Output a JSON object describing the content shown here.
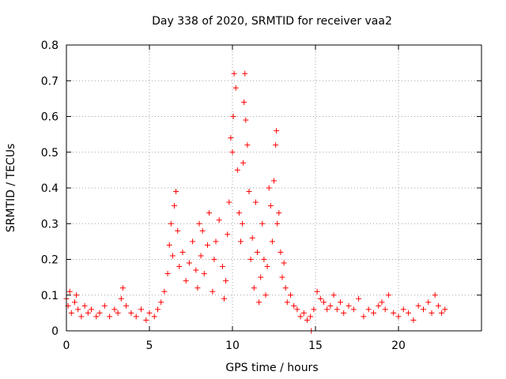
{
  "chart_data": {
    "type": "scatter",
    "title": "Day 338 of 2020, SRMTID for receiver vaa2",
    "xlabel": "GPS time / hours",
    "ylabel": "SRMTID / TECUs",
    "xlim": [
      0,
      25
    ],
    "ylim": [
      0,
      0.8
    ],
    "xticks": [
      0,
      5,
      10,
      15,
      20
    ],
    "xtick_labels": [
      "0",
      "5",
      "10",
      "15",
      "20"
    ],
    "yticks": [
      0,
      0.1,
      0.2,
      0.3,
      0.4,
      0.5,
      0.6,
      0.7,
      0.8
    ],
    "ytick_labels": [
      "0",
      "0.1",
      "0.2",
      "0.3",
      "0.4",
      "0.5",
      "0.6",
      "0.7",
      "0.8"
    ],
    "grid": true,
    "marker": "plus",
    "color": "#ff0000",
    "series": [
      {
        "name": "SRMTID",
        "x": [
          0.0,
          0.1,
          0.2,
          0.3,
          0.5,
          0.6,
          0.7,
          0.9,
          1.1,
          1.3,
          1.5,
          1.8,
          2.0,
          2.3,
          2.6,
          2.9,
          3.1,
          3.3,
          3.4,
          3.6,
          3.9,
          4.2,
          4.5,
          4.8,
          5.0,
          5.3,
          5.5,
          5.7,
          5.9,
          6.1,
          6.2,
          6.3,
          6.4,
          6.5,
          6.6,
          6.7,
          6.8,
          7.0,
          7.2,
          7.4,
          7.6,
          7.8,
          7.9,
          8.0,
          8.1,
          8.2,
          8.3,
          8.5,
          8.6,
          8.8,
          8.9,
          9.0,
          9.2,
          9.4,
          9.5,
          9.6,
          9.7,
          9.8,
          9.9,
          10.0,
          10.05,
          10.1,
          10.2,
          10.3,
          10.4,
          10.5,
          10.6,
          10.65,
          10.7,
          10.75,
          10.8,
          10.9,
          11.0,
          11.1,
          11.2,
          11.3,
          11.4,
          11.5,
          11.6,
          11.7,
          11.8,
          11.9,
          12.0,
          12.1,
          12.2,
          12.3,
          12.4,
          12.5,
          12.6,
          12.65,
          12.7,
          12.8,
          12.9,
          13.0,
          13.1,
          13.2,
          13.3,
          13.5,
          13.7,
          13.9,
          14.1,
          14.3,
          14.5,
          14.7,
          14.75,
          14.9,
          15.1,
          15.3,
          15.5,
          15.7,
          15.9,
          16.1,
          16.3,
          16.5,
          16.7,
          17.0,
          17.3,
          17.6,
          17.9,
          18.2,
          18.5,
          18.8,
          19.0,
          19.2,
          19.4,
          19.7,
          20.0,
          20.3,
          20.6,
          20.9,
          21.2,
          21.5,
          21.8,
          22.0,
          22.2,
          22.4,
          22.6,
          22.8
        ],
        "values": [
          0.09,
          0.07,
          0.11,
          0.05,
          0.08,
          0.1,
          0.06,
          0.04,
          0.07,
          0.05,
          0.06,
          0.04,
          0.05,
          0.07,
          0.04,
          0.06,
          0.05,
          0.09,
          0.12,
          0.07,
          0.05,
          0.04,
          0.06,
          0.03,
          0.05,
          0.04,
          0.06,
          0.08,
          0.11,
          0.16,
          0.24,
          0.3,
          0.21,
          0.35,
          0.39,
          0.28,
          0.18,
          0.22,
          0.14,
          0.19,
          0.25,
          0.17,
          0.12,
          0.3,
          0.21,
          0.28,
          0.16,
          0.24,
          0.33,
          0.11,
          0.2,
          0.25,
          0.31,
          0.18,
          0.09,
          0.14,
          0.27,
          0.36,
          0.54,
          0.5,
          0.6,
          0.72,
          0.68,
          0.45,
          0.33,
          0.25,
          0.3,
          0.47,
          0.64,
          0.72,
          0.59,
          0.52,
          0.39,
          0.2,
          0.26,
          0.12,
          0.36,
          0.22,
          0.08,
          0.15,
          0.3,
          0.2,
          0.1,
          0.18,
          0.4,
          0.35,
          0.25,
          0.42,
          0.52,
          0.56,
          0.3,
          0.33,
          0.22,
          0.15,
          0.19,
          0.12,
          0.08,
          0.1,
          0.07,
          0.06,
          0.04,
          0.05,
          0.03,
          0.04,
          0.0,
          0.06,
          0.11,
          0.09,
          0.08,
          0.06,
          0.07,
          0.1,
          0.06,
          0.08,
          0.05,
          0.07,
          0.06,
          0.09,
          0.04,
          0.06,
          0.05,
          0.07,
          0.08,
          0.06,
          0.1,
          0.05,
          0.04,
          0.06,
          0.05,
          0.03,
          0.07,
          0.06,
          0.08,
          0.05,
          0.1,
          0.07,
          0.05,
          0.06
        ]
      }
    ]
  }
}
